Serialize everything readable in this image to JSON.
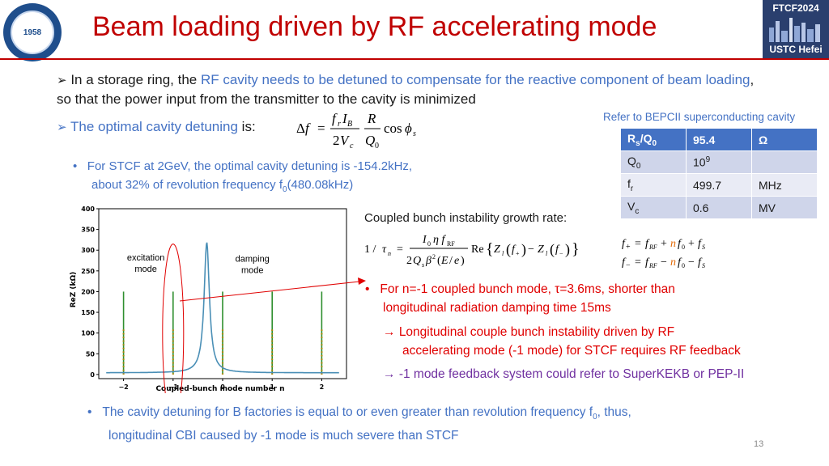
{
  "header": {
    "title": "Beam loading driven by RF accelerating mode",
    "logo_text": "1958",
    "badge_top": "FTCF2024",
    "badge_bottom": "USTC Hefei"
  },
  "bullet1": {
    "pre": "In a storage ring, the ",
    "highlight": "RF cavity needs to be detuned to compensate for the reactive component of beam loading",
    "post": ", so that the power input from the transmitter to the cavity is minimized"
  },
  "bullet2": {
    "highlight": "The optimal cavity detuning",
    "post": " is:"
  },
  "refer_note": "Refer to BEPCII superconducting cavity",
  "param_table": {
    "header": [
      "R",
      "s",
      "/Q",
      "0",
      "95.4",
      "Ω"
    ],
    "rows": [
      {
        "p": "Q",
        "sub": "0",
        "v": "10",
        "sup": "9",
        "u": ""
      },
      {
        "p": "f",
        "sub": "r",
        "v": "499.7",
        "sup": "",
        "u": "MHz"
      },
      {
        "p": "V",
        "sub": "c",
        "v": "0.6",
        "sup": "",
        "u": "MV"
      }
    ]
  },
  "stcf_note": {
    "line1": "For STCF at 2GeV, the optimal cavity detuning is -154.2kHz,",
    "line2a": "about 32% of revolution frequency f",
    "line2sub": "0",
    "line2b": "(480.08kHz)"
  },
  "cbi_label": "Coupled bunch instability growth rate:",
  "cbi_note": {
    "line1": "For n=-1 coupled bunch mode,  τ=3.6ms,  shorter than",
    "line2": "longitudinal radiation damping time 15ms",
    "arrow1a": "Longitudinal couple bunch instability driven by RF",
    "arrow1b": "accelerating mode (-1 mode) for STCF requires RF feedback",
    "arrow2": "-1 mode feedback system could refer to SuperKEKB or PEP-II"
  },
  "bottom_note": {
    "line1a": "The cavity detuning for B factories is equal to or even greater than revolution frequency f",
    "line1sub": "0",
    "line1b": ", thus,",
    "line2": "longitudinal CBI caused by -1 mode is much severe than STCF"
  },
  "page_number": "13",
  "chart_data": {
    "type": "line",
    "title": "",
    "xlabel": "Coupled-bunch mode number n",
    "ylabel": "ReZ (kΩ)",
    "xlim": [
      -2.5,
      2.5
    ],
    "ylim": [
      -10,
      400
    ],
    "x_ticks": [
      "−2",
      "−1",
      "0",
      "1",
      "2"
    ],
    "y_ticks": [
      "0",
      "50",
      "100",
      "150",
      "200",
      "250",
      "300",
      "350",
      "400"
    ],
    "resonance": {
      "center": -0.32,
      "peak": 315,
      "half_width": 0.13
    },
    "spikes": [
      {
        "x": -2,
        "height": 200
      },
      {
        "x": -1,
        "height": 200
      },
      {
        "x": 0,
        "height": 200
      },
      {
        "x": 1,
        "height": 200
      },
      {
        "x": 2,
        "height": 200
      }
    ],
    "annotations": [
      {
        "text_lines": [
          "excitation",
          "mode"
        ],
        "at_x": -1.55,
        "at_y": 275
      },
      {
        "text_lines": [
          "damping",
          "mode"
        ],
        "at_x": 0.6,
        "at_y": 272
      }
    ],
    "highlight_mode": -1
  }
}
